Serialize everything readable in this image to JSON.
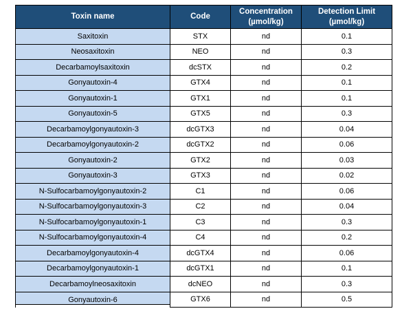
{
  "colors": {
    "header_bg": "#1F4E79",
    "header_text": "#FFFFFF",
    "label_cell_bg": "#C5D9F1",
    "border": "#000000",
    "body_text": "#000000"
  },
  "table": {
    "columns": [
      {
        "label": "Toxin name",
        "unit": ""
      },
      {
        "label": "Code",
        "unit": ""
      },
      {
        "label": "Concentration",
        "unit": "(µmol/kg)"
      },
      {
        "label": "Detection Limit",
        "unit": "(µmol/kg)"
      }
    ],
    "rows": [
      {
        "toxin": "Saxitoxin",
        "code": "STX",
        "concentration": "nd",
        "detection_limit": "0.1"
      },
      {
        "toxin": "Neosaxitoxin",
        "code": "NEO",
        "concentration": "nd",
        "detection_limit": "0.3"
      },
      {
        "toxin": "Decarbamoylsaxitoxin",
        "code": "dcSTX",
        "concentration": "nd",
        "detection_limit": "0.2"
      },
      {
        "toxin": "Gonyautoxin-4",
        "code": "GTX4",
        "concentration": "nd",
        "detection_limit": "0.1"
      },
      {
        "toxin": "Gonyautoxin-1",
        "code": "GTX1",
        "concentration": "nd",
        "detection_limit": "0.1"
      },
      {
        "toxin": "Gonyautoxin-5",
        "code": "GTX5",
        "concentration": "nd",
        "detection_limit": "0.3"
      },
      {
        "toxin": "Decarbamoylgonyautoxin-3",
        "code": "dcGTX3",
        "concentration": "nd",
        "detection_limit": "0.04"
      },
      {
        "toxin": "Decarbamoylgonyautoxin-2",
        "code": "dcGTX2",
        "concentration": "nd",
        "detection_limit": "0.06"
      },
      {
        "toxin": "Gonyautoxin-2",
        "code": "GTX2",
        "concentration": "nd",
        "detection_limit": "0.03"
      },
      {
        "toxin": "Gonyautoxin-3",
        "code": "GTX3",
        "concentration": "nd",
        "detection_limit": "0.02"
      },
      {
        "toxin": "N-Sulfocarbamoylgonyautoxin-2",
        "code": "C1",
        "concentration": "nd",
        "detection_limit": "0.06"
      },
      {
        "toxin": "N-Sulfocarbamoylgonyautoxin-3",
        "code": "C2",
        "concentration": "nd",
        "detection_limit": "0.04"
      },
      {
        "toxin": "N-Sulfocarbamoylgonyautoxin-1",
        "code": "C3",
        "concentration": "nd",
        "detection_limit": "0.3"
      },
      {
        "toxin": "N-Sulfocarbamoylgonyautoxin-4",
        "code": "C4",
        "concentration": "nd",
        "detection_limit": "0.2"
      },
      {
        "toxin": "Decarbamoylgonyautoxin-4",
        "code": "dcGTX4",
        "concentration": "nd",
        "detection_limit": "0.06"
      },
      {
        "toxin": "Decarbamoylgonyautoxin-1",
        "code": "dcGTX1",
        "concentration": "nd",
        "detection_limit": "0.1"
      },
      {
        "toxin": "Decarbamoylneosaxitoxin",
        "code": "dcNEO",
        "concentration": "nd",
        "detection_limit": "0.3"
      },
      {
        "toxin": "Gonyautoxin-6",
        "code": "GTX6",
        "concentration": "nd",
        "detection_limit": "0.5"
      }
    ]
  }
}
